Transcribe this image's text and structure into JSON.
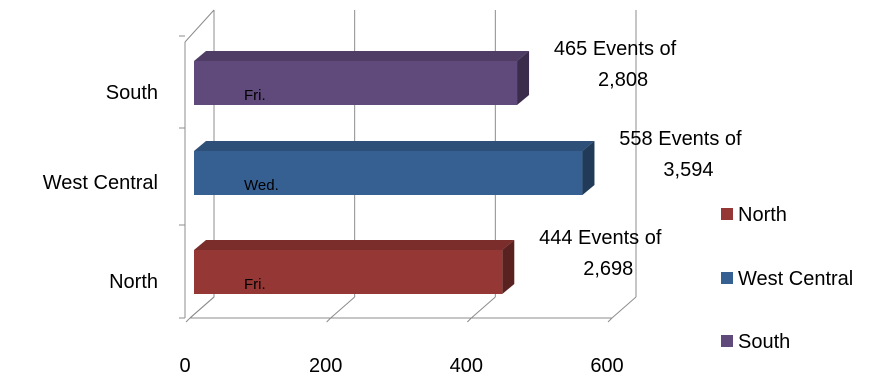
{
  "chart_data": {
    "type": "bar",
    "orientation": "horizontal",
    "style": "3d",
    "categories": [
      "North",
      "West Central",
      "South"
    ],
    "values": [
      444,
      558,
      465
    ],
    "colors": [
      "#953735",
      "#376092",
      "#604A7B"
    ],
    "bar_labels": [
      "Fri.",
      "Wed.",
      "Fri."
    ],
    "annotations": [
      [
        "444 Events of",
        "2,698"
      ],
      [
        "558 Events of",
        "3,594"
      ],
      [
        "465 Events of",
        "2,808"
      ]
    ],
    "xlim": [
      0,
      600
    ],
    "x_ticks": [
      "0",
      "200",
      "400",
      "600"
    ],
    "grid": "vertical",
    "legend": {
      "position": "right",
      "entries": [
        "North",
        "West Central",
        "South"
      ]
    }
  }
}
